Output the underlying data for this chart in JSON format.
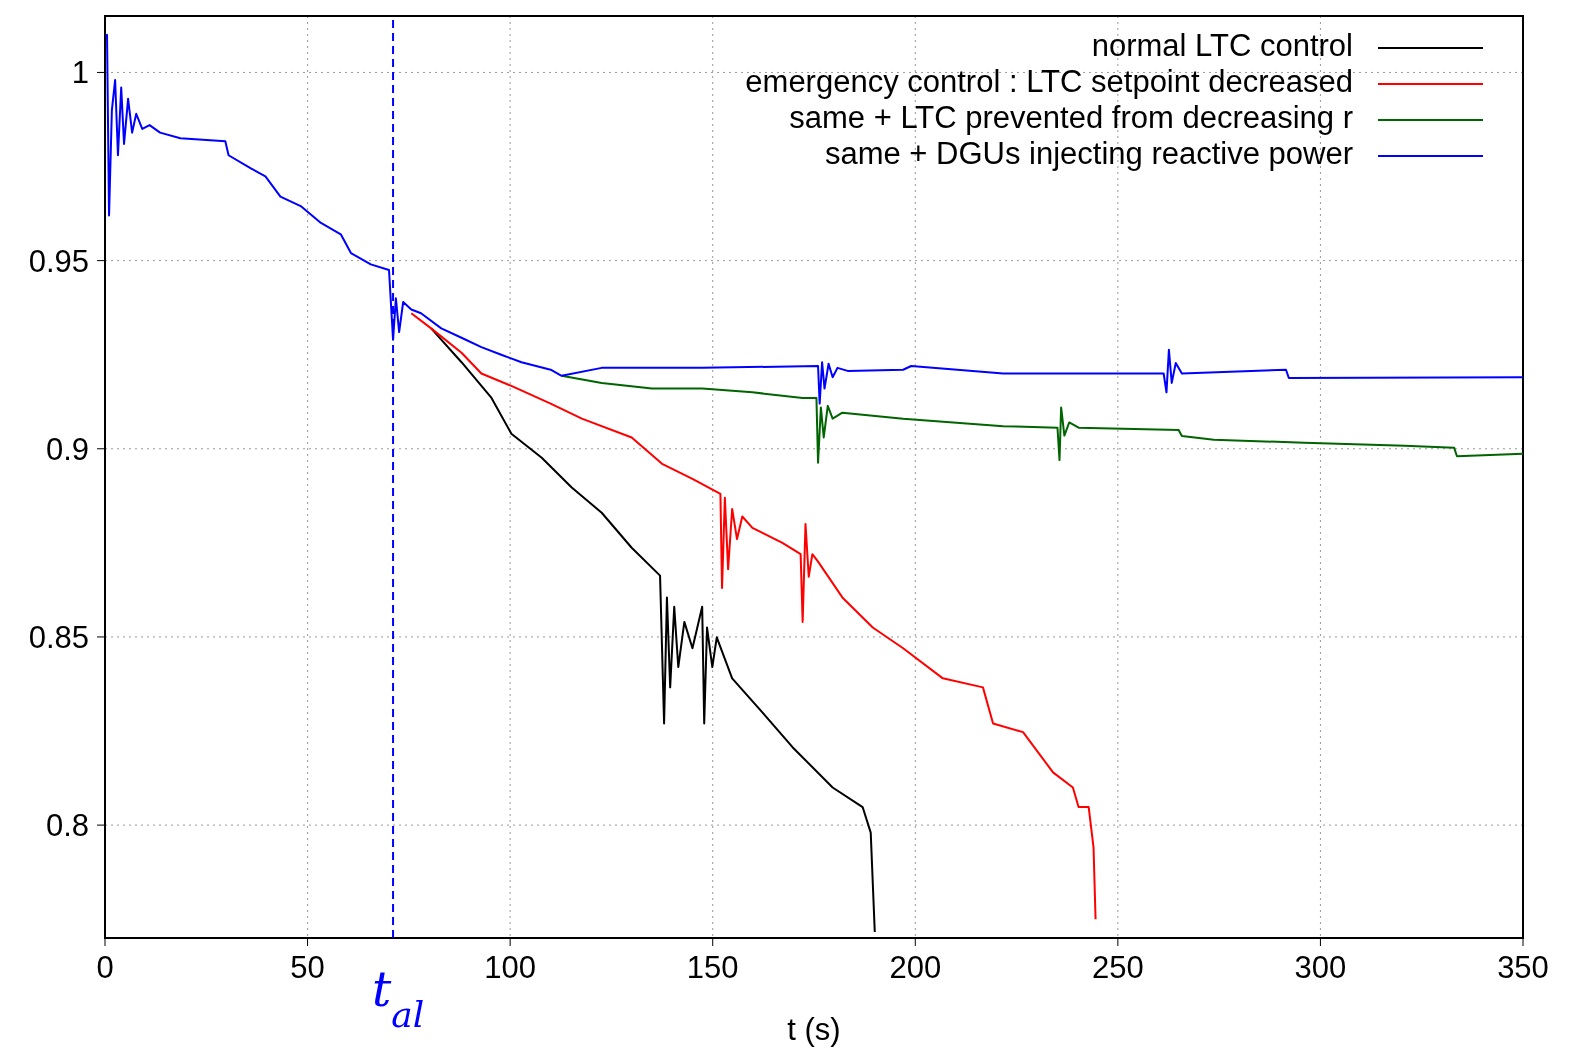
{
  "chart_data": {
    "type": "line",
    "xlabel": "t (s)",
    "xlim": [
      0,
      350
    ],
    "xticks": [
      0,
      50,
      100,
      150,
      200,
      250,
      300,
      350
    ],
    "ylim": [
      0.77,
      1.015
    ],
    "yticks": [
      0.8,
      0.85,
      0.9,
      0.95,
      1
    ],
    "grid": true,
    "legend": "top right",
    "line_style": "solid",
    "marker": "none",
    "ref_lines": [
      {
        "axis": "x",
        "value": 71.1,
        "label": "t$_{al}$",
        "color": "#0000ff",
        "line_style": "dashed"
      }
    ],
    "series": [
      {
        "name": "normal LTC control",
        "color": "#000000",
        "x": [
          80.5,
          88,
          95.4,
          100.3,
          107.8,
          115.2,
          122.6,
          130,
          137,
          138,
          138.7,
          139.5,
          140.5,
          141.5,
          143,
          145,
          147.4,
          147.9,
          148.6,
          149.9,
          151,
          154.8,
          162.2,
          169.7,
          179.6,
          187,
          189,
          190
        ],
        "values": [
          0.932,
          0.923,
          0.9135,
          0.904,
          0.8976,
          0.8897,
          0.883,
          0.8737,
          0.8663,
          0.827,
          0.8605,
          0.8366,
          0.858,
          0.842,
          0.854,
          0.847,
          0.858,
          0.827,
          0.8525,
          0.842,
          0.8499,
          0.839,
          0.83,
          0.8207,
          0.81,
          0.8048,
          0.798,
          0.7716
        ]
      },
      {
        "name": "emergency control : LTC setpoint decreased",
        "color": "#ff0000",
        "x": [
          75.6,
          80.5,
          88,
          92.9,
          100.3,
          110,
          117.7,
          130,
          137.5,
          145,
          151.9,
          152.3,
          153,
          153.8,
          154.8,
          156,
          157.3,
          159.8,
          167.2,
          171.7,
          172.2,
          172.9,
          173.7,
          174.6,
          176,
          182,
          189.5,
          197,
          206.8,
          216.7,
          219.2,
          226.6,
          234,
          238.9,
          240.3,
          242.8,
          244,
          244.5
        ],
        "values": [
          0.936,
          0.932,
          0.9255,
          0.92,
          0.9167,
          0.912,
          0.908,
          0.903,
          0.896,
          0.892,
          0.888,
          0.863,
          0.887,
          0.868,
          0.884,
          0.876,
          0.882,
          0.879,
          0.875,
          0.872,
          0.854,
          0.88,
          0.866,
          0.872,
          0.87,
          0.8605,
          0.8525,
          0.847,
          0.839,
          0.8366,
          0.827,
          0.8247,
          0.814,
          0.81,
          0.8048,
          0.8048,
          0.794,
          0.775
        ]
      },
      {
        "name": "same + LTC prevented from decreasing r",
        "color": "#006400",
        "x": [
          112.7,
          122.6,
          135,
          147.4,
          159.8,
          172.2,
          175.6,
          176,
          176.7,
          177.4,
          178.4,
          179.6,
          182,
          197,
          221.7,
          235.1,
          235.6,
          236,
          236.8,
          238,
          240.3,
          265,
          265.8,
          273.7,
          296,
          320.8,
          333,
          333.7,
          350
        ],
        "values": [
          0.9194,
          0.9175,
          0.916,
          0.916,
          0.915,
          0.9135,
          0.9135,
          0.8963,
          0.911,
          0.903,
          0.9114,
          0.908,
          0.9096,
          0.908,
          0.906,
          0.9056,
          0.897,
          0.911,
          0.9035,
          0.907,
          0.9056,
          0.905,
          0.9034,
          0.9024,
          0.9016,
          0.9008,
          0.9003,
          0.898,
          0.8987
        ]
      },
      {
        "name": "same + DGUs injecting reactive power",
        "color": "#0000ff",
        "x": [
          0,
          0.5,
          1,
          1.7,
          2.5,
          3.2,
          4,
          4.7,
          5.7,
          6.7,
          7.7,
          9.2,
          11,
          13.6,
          18.6,
          29.7,
          30.5,
          36,
          39.6,
          43.3,
          48.3,
          53.3,
          58.2,
          60.7,
          65.6,
          70.1,
          71.1,
          71.8,
          72.6,
          73.6,
          75.6,
          78,
          83,
          88,
          92.9,
          97.8,
          102.8,
          110,
          112.7,
          122.6,
          147.4,
          176,
          176.4,
          177,
          177.6,
          178.6,
          179.6,
          180.8,
          183.3,
          197,
          199,
          221.7,
          261.3,
          262,
          262.6,
          263.3,
          264.3,
          265.8,
          291.5,
          292.2,
          350
        ],
        "values": [
          1.0095,
          1.01,
          0.962,
          0.99,
          0.998,
          0.978,
          0.996,
          0.981,
          0.993,
          0.984,
          0.989,
          0.985,
          0.986,
          0.984,
          0.9825,
          0.9817,
          0.978,
          0.9745,
          0.9724,
          0.967,
          0.9645,
          0.96,
          0.957,
          0.952,
          0.949,
          0.9475,
          0.929,
          0.94,
          0.931,
          0.939,
          0.937,
          0.936,
          0.932,
          0.9295,
          0.927,
          0.925,
          0.923,
          0.921,
          0.9194,
          0.9215,
          0.9215,
          0.922,
          0.912,
          0.923,
          0.916,
          0.9226,
          0.919,
          0.9215,
          0.9207,
          0.921,
          0.922,
          0.92,
          0.92,
          0.915,
          0.9263,
          0.9175,
          0.9228,
          0.92,
          0.921,
          0.9188,
          0.919
        ]
      }
    ]
  }
}
